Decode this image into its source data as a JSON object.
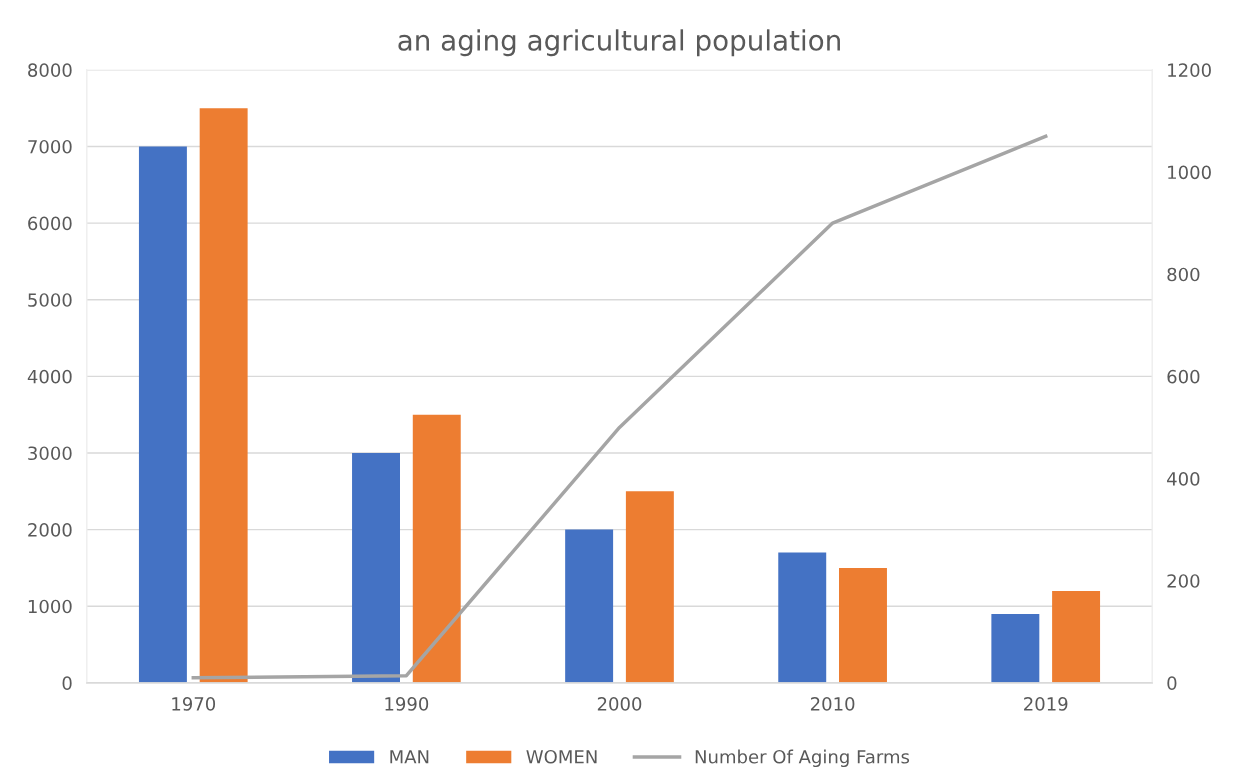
{
  "chart_data": {
    "type": "bar",
    "title": "an aging agricultural population",
    "categories": [
      "1970",
      "1990",
      "2000",
      "2010",
      "2019"
    ],
    "series": [
      {
        "name": "MAN",
        "color": "#4472c4",
        "values": [
          7000,
          3000,
          2000,
          1700,
          900
        ]
      },
      {
        "name": "WOMEN",
        "color": "#ed7d31",
        "values": [
          7500,
          3500,
          2500,
          1500,
          1200
        ]
      },
      {
        "name": "Number Of Aging Farms",
        "type": "line",
        "axis": "y2",
        "color": "#a5a5a5",
        "values": [
          10,
          14,
          500,
          900,
          1070
        ]
      }
    ],
    "ylim": [
      0,
      8000
    ],
    "yticks": [
      0,
      1000,
      2000,
      3000,
      4000,
      5000,
      6000,
      7000,
      8000
    ],
    "y2lim": [
      0,
      1200
    ],
    "y2ticks": [
      0,
      200,
      400,
      600,
      800,
      1000,
      1200
    ],
    "grid": "y",
    "legend": "bottom",
    "marker": "none",
    "line_style": "solid"
  }
}
